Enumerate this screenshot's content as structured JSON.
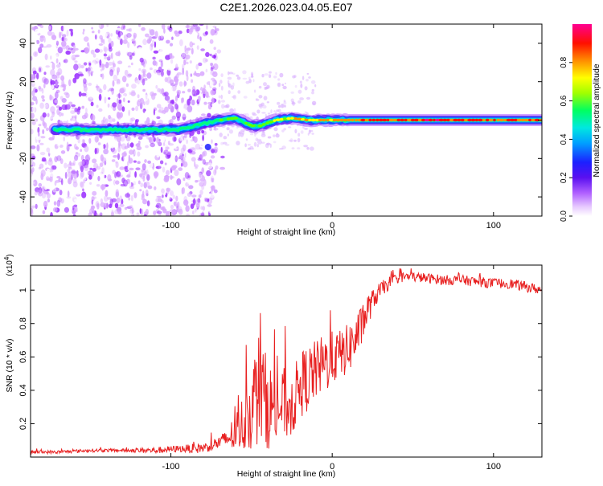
{
  "chart_data": [
    {
      "type": "heatmap",
      "title": "C2E1.2026.023.04.05.E07",
      "xlabel": "Height of straight line (km)",
      "ylabel": "Frequency (Hz)",
      "xlim": [
        -187,
        130
      ],
      "ylim": [
        -50,
        50
      ],
      "x_ticks": [
        -100,
        0,
        100
      ],
      "x_tick_labels": [
        "-100",
        "0",
        "100"
      ],
      "y_ticks": [
        -40,
        -20,
        0,
        20,
        40
      ],
      "y_tick_labels": [
        "-40",
        "-20",
        "0",
        "20",
        "40"
      ],
      "colorbar": {
        "label": "Normalized spectral amplitude",
        "range": [
          0,
          1
        ],
        "ticks": [
          0.0,
          0.2,
          0.4,
          0.6,
          0.8
        ],
        "tick_labels": [
          "0.0",
          "0.2",
          "0.4",
          "0.6",
          "0.8"
        ],
        "colors": [
          "#ffffff",
          "#d9a8ff",
          "#9b30ff",
          "#3a00f0",
          "#0060ff",
          "#00d0ff",
          "#00ff80",
          "#60ff00",
          "#ffff00",
          "#ff9000",
          "#ff1000",
          "#ff0090"
        ]
      },
      "ridge": {
        "description": "dominant frequency track vs height",
        "x": [
          -170,
          -140,
          -110,
          -95,
          -85,
          -70,
          -60,
          -55,
          -50,
          -45,
          -35,
          -25,
          -15,
          -5,
          0,
          10,
          30,
          60,
          100,
          130
        ],
        "frequency_hz": [
          -5,
          -5,
          -5,
          -5,
          -3,
          0,
          1,
          -1,
          -3,
          -3,
          0,
          1,
          0,
          0,
          0,
          0,
          0,
          0,
          0,
          0
        ],
        "amplitude": [
          0.55,
          0.5,
          0.45,
          0.45,
          0.55,
          0.6,
          0.65,
          0.6,
          0.6,
          0.62,
          0.7,
          0.75,
          0.78,
          0.8,
          0.82,
          0.85,
          0.9,
          0.92,
          0.88,
          0.85
        ]
      }
    },
    {
      "type": "line",
      "xlabel": "Height of straight line (km)",
      "ylabel": "SNR (10 * v/v)",
      "yscale_label": "(x10",
      "yscale_exp": "4",
      "yscale_close": ")",
      "xlim": [
        -187,
        130
      ],
      "ylim": [
        0,
        1.15
      ],
      "x_ticks": [
        -100,
        0,
        100
      ],
      "x_tick_labels": [
        "-100",
        "0",
        "100"
      ],
      "y_ticks": [
        0.2,
        0.4,
        0.6,
        0.8,
        1.0
      ],
      "y_tick_labels": [
        "0.2",
        "0.4",
        "0.6",
        "0.8",
        "1"
      ],
      "series": [
        {
          "name": "SNR",
          "color": "#e82020",
          "x": [
            -187,
            -170,
            -150,
            -130,
            -110,
            -95,
            -85,
            -78,
            -72,
            -67,
            -62,
            -57,
            -52,
            -48,
            -45,
            -42,
            -38,
            -34,
            -30,
            -26,
            -22,
            -18,
            -14,
            -10,
            -6,
            -2,
            2,
            6,
            10,
            14,
            18,
            22,
            26,
            30,
            35,
            40,
            45,
            50,
            60,
            70,
            80,
            90,
            100,
            110,
            120,
            130
          ],
          "y": [
            0.03,
            0.03,
            0.04,
            0.04,
            0.04,
            0.05,
            0.05,
            0.06,
            0.08,
            0.1,
            0.13,
            0.18,
            0.25,
            0.35,
            0.42,
            0.35,
            0.3,
            0.28,
            0.32,
            0.3,
            0.38,
            0.45,
            0.48,
            0.52,
            0.55,
            0.58,
            0.6,
            0.62,
            0.65,
            0.7,
            0.78,
            0.88,
            0.95,
            1.0,
            1.04,
            1.07,
            1.08,
            1.08,
            1.07,
            1.06,
            1.06,
            1.05,
            1.04,
            1.04,
            1.02,
            1.0
          ],
          "noise": [
            0.01,
            0.01,
            0.01,
            0.01,
            0.02,
            0.02,
            0.03,
            0.03,
            0.04,
            0.05,
            0.1,
            0.15,
            0.22,
            0.3,
            0.35,
            0.3,
            0.25,
            0.2,
            0.22,
            0.2,
            0.2,
            0.2,
            0.2,
            0.18,
            0.18,
            0.18,
            0.15,
            0.15,
            0.15,
            0.15,
            0.12,
            0.1,
            0.06,
            0.05,
            0.04,
            0.03,
            0.03,
            0.03,
            0.03,
            0.03,
            0.03,
            0.03,
            0.03,
            0.03,
            0.03,
            0.03
          ]
        }
      ]
    }
  ]
}
